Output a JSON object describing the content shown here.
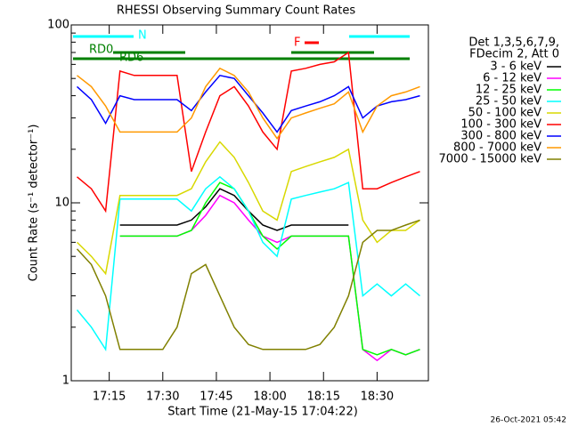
{
  "chart_data": {
    "type": "line",
    "title": "RHESSI Observing Summary Count Rates",
    "x_label": "Start Time (21-May-15 17:04:22)",
    "y_label": "Count Rate (s⁻¹ detector⁻¹)",
    "timestamp": "26-Oct-2021 05:42",
    "legend_title": [
      "Det 1,3,5,6,7,9,",
      "FDecim 2, Att 0"
    ],
    "flags": [
      "N",
      "RD0",
      "RD6",
      "F"
    ],
    "log_y": true,
    "xlim": [
      "17:04:22",
      "18:44:22"
    ],
    "xticks": [
      "17:15",
      "17:30",
      "17:45",
      "18:00",
      "18:15",
      "18:30"
    ],
    "ylim": [
      1,
      100
    ],
    "yticks": [
      1,
      10,
      100
    ],
    "x": [
      "17:06",
      "17:10",
      "17:14",
      "17:18",
      "17:22",
      "17:26",
      "17:30",
      "17:34",
      "17:38",
      "17:42",
      "17:46",
      "17:50",
      "17:54",
      "17:58",
      "18:02",
      "18:06",
      "18:10",
      "18:14",
      "18:18",
      "18:22",
      "18:26",
      "18:30",
      "18:34",
      "18:38",
      "18:42"
    ],
    "series": [
      {
        "name": "3 - 6 keV",
        "color": "#000000",
        "values": [
          null,
          null,
          null,
          7.5,
          7.5,
          7.5,
          7.5,
          7.5,
          8,
          9.5,
          12,
          11,
          9,
          7.5,
          7,
          7.5,
          7.5,
          7.5,
          7.5,
          7.5,
          null,
          null,
          null,
          null,
          null
        ]
      },
      {
        "name": "6 - 12 keV",
        "color": "#ff00ff",
        "values": [
          null,
          null,
          null,
          6.5,
          6.5,
          6.5,
          6.5,
          6.5,
          7,
          8.5,
          11,
          10,
          8,
          6.5,
          6,
          6.5,
          6.5,
          6.5,
          6.5,
          6.5,
          1.5,
          1.3,
          1.5,
          1.4,
          1.5
        ]
      },
      {
        "name": "12 - 25 keV",
        "color": "#00ff00",
        "values": [
          null,
          null,
          null,
          6.5,
          6.5,
          6.5,
          6.5,
          6.5,
          7,
          10,
          13,
          12,
          9,
          6.5,
          5.5,
          6.5,
          6.5,
          6.5,
          6.5,
          6.5,
          1.5,
          1.4,
          1.5,
          1.4,
          1.5
        ]
      },
      {
        "name": "25 - 50 keV",
        "color": "#00ffff",
        "values": [
          2.5,
          2,
          1.5,
          10.5,
          10.5,
          10.5,
          10.5,
          10.5,
          9,
          12,
          14,
          12,
          9,
          6,
          5,
          10.5,
          11,
          11.5,
          12,
          13,
          3,
          3.5,
          3,
          3.5,
          3
        ]
      },
      {
        "name": "50 - 100 keV",
        "color": "#d8d800",
        "values": [
          6,
          5,
          4,
          11,
          11,
          11,
          11,
          11,
          12,
          17,
          22,
          18,
          13,
          9,
          8,
          15,
          16,
          17,
          18,
          20,
          8,
          6,
          7,
          7,
          8
        ]
      },
      {
        "name": "100 - 300 keV",
        "color": "#ff0000",
        "values": [
          14,
          12,
          9,
          55,
          52,
          52,
          52,
          52,
          15,
          25,
          40,
          45,
          35,
          25,
          20,
          55,
          57,
          60,
          62,
          70,
          12,
          12,
          13,
          14,
          15
        ]
      },
      {
        "name": "300 - 800 keV",
        "color": "#0000ff",
        "values": [
          45,
          38,
          28,
          40,
          38,
          38,
          38,
          38,
          33,
          42,
          52,
          50,
          40,
          32,
          25,
          33,
          35,
          37,
          40,
          45,
          30,
          35,
          37,
          38,
          40
        ]
      },
      {
        "name": "800 - 7000 keV",
        "color": "#ff9900",
        "values": [
          52,
          45,
          35,
          25,
          25,
          25,
          25,
          25,
          30,
          45,
          57,
          52,
          42,
          30,
          23,
          30,
          32,
          34,
          36,
          42,
          25,
          35,
          40,
          42,
          45
        ]
      },
      {
        "name": "7000 - 15000 keV",
        "color": "#808000",
        "values": [
          5.5,
          4.5,
          3,
          1.5,
          1.5,
          1.5,
          1.5,
          2,
          4,
          4.5,
          3,
          2,
          1.6,
          1.5,
          1.5,
          1.5,
          1.5,
          1.6,
          2,
          3,
          6,
          7,
          7,
          7.5,
          8
        ]
      }
    ]
  }
}
